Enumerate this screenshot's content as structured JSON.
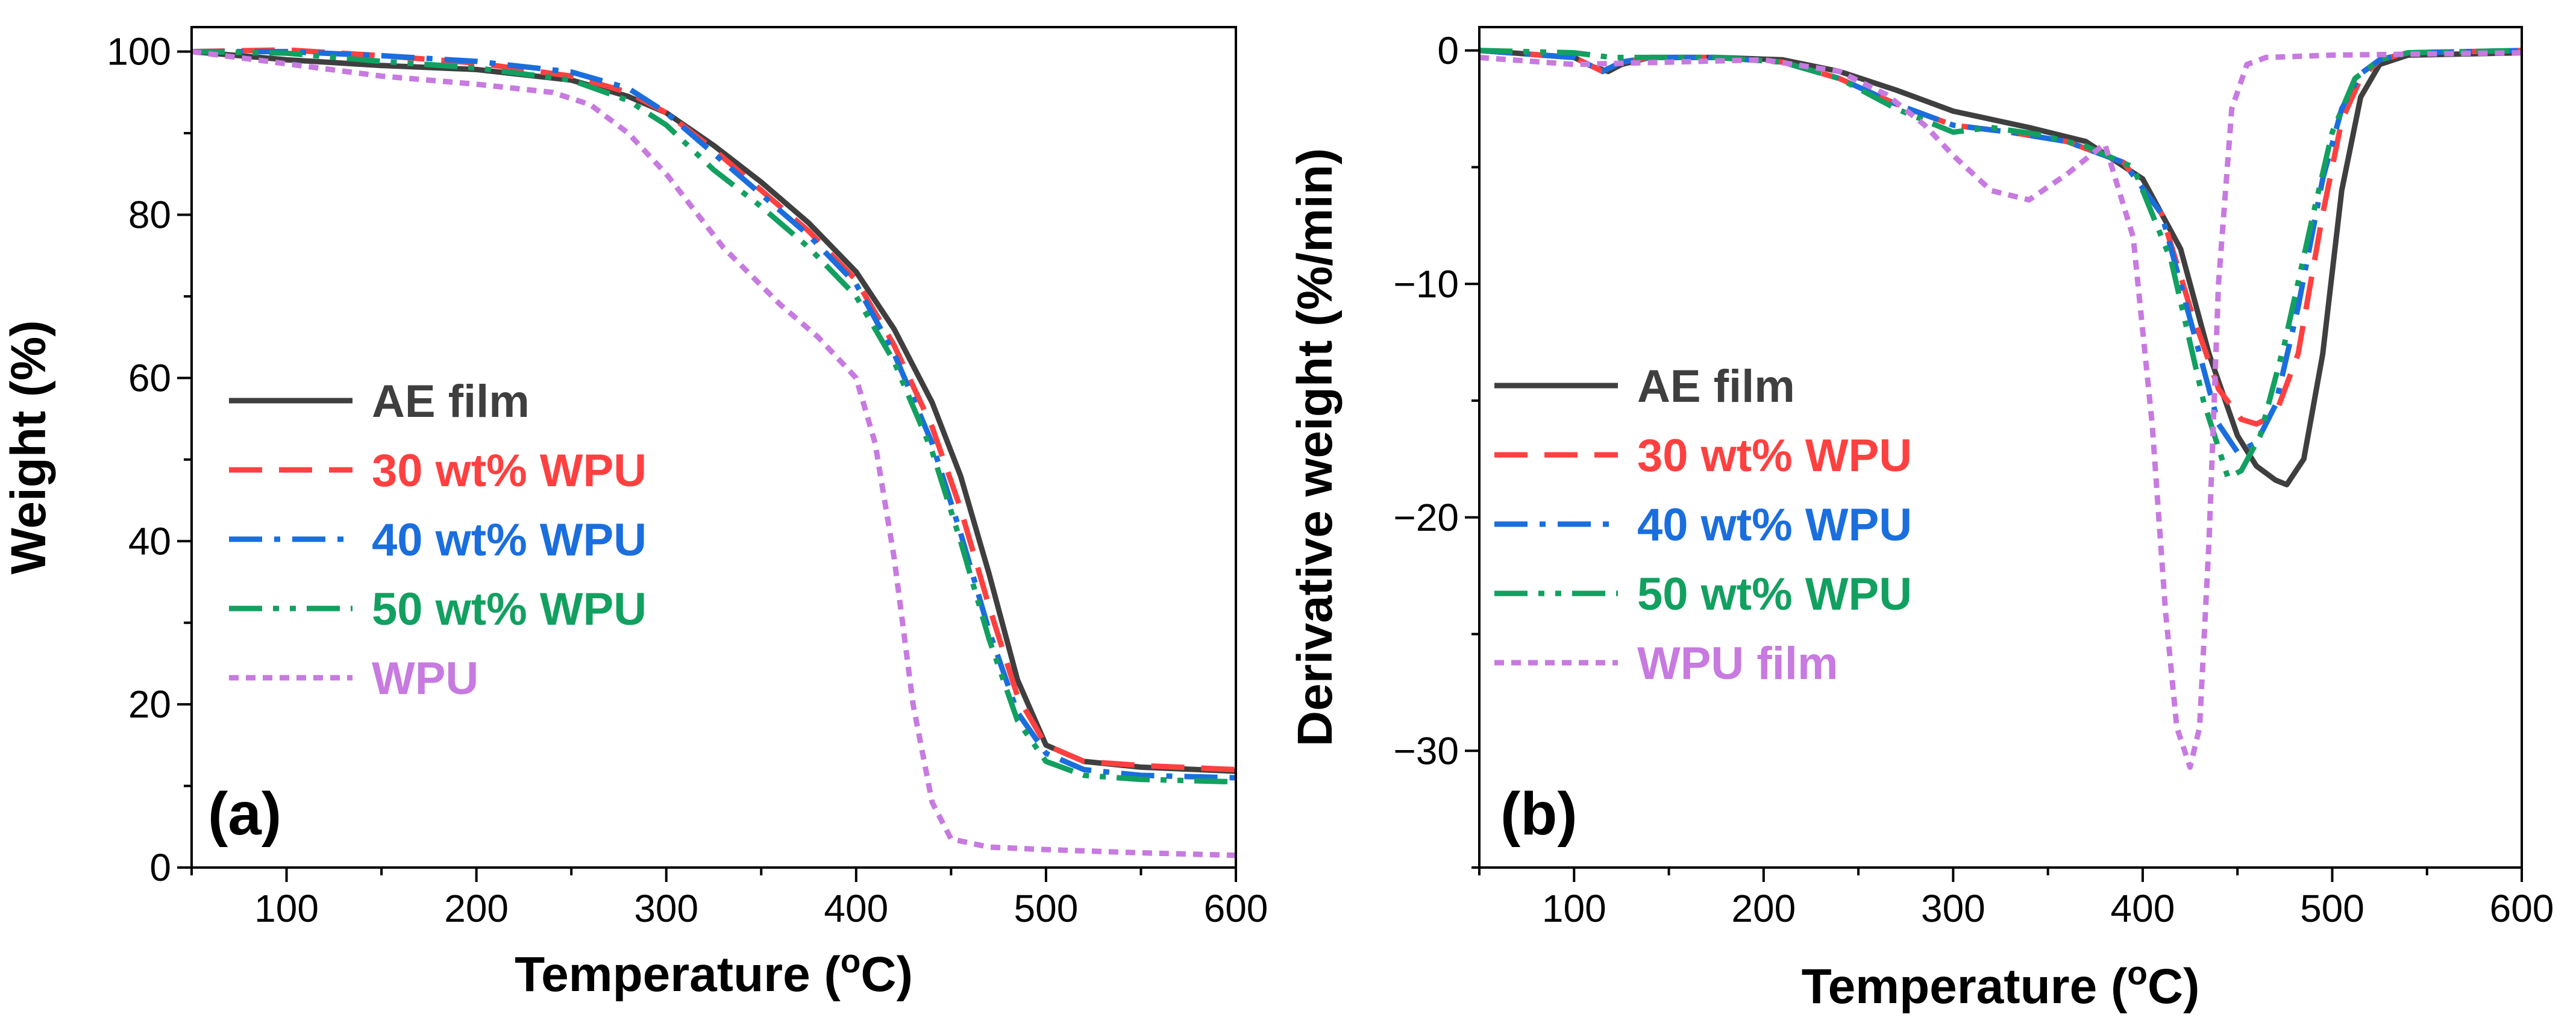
{
  "chart_data": [
    {
      "type": "line",
      "panel_label": "(a)",
      "xlabel_main": "Temperature (",
      "xlabel_sup": "o",
      "xlabel_end": "C)",
      "ylabel": "Weight (%)",
      "xlim": [
        50,
        600
      ],
      "ylim": [
        0,
        103
      ],
      "xticks": [
        100,
        200,
        300,
        400,
        500,
        600
      ],
      "xtick_labels": [
        "100",
        "200",
        "300",
        "400",
        "500",
        "600"
      ],
      "yticks": [
        0,
        20,
        40,
        60,
        80,
        100
      ],
      "ytick_labels": [
        "0",
        "20",
        "40",
        "60",
        "80",
        "100"
      ],
      "legend_position": "center-left",
      "series": [
        {
          "name": "AE film",
          "color": "#3f3f3f",
          "dash": "solid",
          "x": [
            50,
            100,
            150,
            200,
            250,
            280,
            300,
            325,
            350,
            375,
            400,
            420,
            440,
            455,
            470,
            485,
            500,
            520,
            550,
            600
          ],
          "y": [
            100,
            99,
            98.3,
            97.8,
            96.5,
            94.5,
            92.5,
            88.5,
            84,
            79,
            73,
            66,
            57,
            48,
            36,
            23,
            15,
            13,
            12.3,
            11.8
          ]
        },
        {
          "name": "30 wt% WPU",
          "color": "#ff4040",
          "dash": "dashed",
          "x": [
            50,
            100,
            150,
            200,
            250,
            280,
            300,
            325,
            350,
            375,
            400,
            420,
            440,
            455,
            470,
            485,
            500,
            520,
            550,
            600
          ],
          "y": [
            100,
            100.2,
            99.5,
            98.6,
            97,
            95,
            92.5,
            88,
            83,
            78,
            72,
            64,
            54,
            44,
            32,
            21,
            15,
            13,
            12.5,
            12
          ]
        },
        {
          "name": "40 wt% WPU",
          "color": "#1a6ede",
          "dash": "dashdot",
          "x": [
            50,
            100,
            150,
            200,
            250,
            280,
            300,
            325,
            350,
            375,
            400,
            420,
            440,
            455,
            470,
            485,
            500,
            520,
            550,
            600
          ],
          "y": [
            100,
            100,
            99.5,
            98.8,
            97.5,
            95.5,
            92.5,
            87.5,
            82.5,
            77.5,
            71.5,
            63,
            52,
            41,
            29,
            19,
            14,
            12,
            11.3,
            11
          ]
        },
        {
          "name": "50 wt% WPU",
          "color": "#12a060",
          "dash": "dashdotdot",
          "x": [
            50,
            100,
            150,
            200,
            250,
            280,
            300,
            325,
            350,
            375,
            400,
            420,
            440,
            455,
            470,
            485,
            500,
            520,
            550,
            600
          ],
          "y": [
            100,
            99.8,
            98.8,
            98,
            96.5,
            94,
            91,
            85.5,
            81,
            76,
            70,
            62,
            51,
            40,
            28,
            18,
            13,
            11.3,
            10.8,
            10.5
          ]
        },
        {
          "name": "WPU",
          "color": "#c77ae0",
          "dash": "dotted",
          "x": [
            50,
            100,
            150,
            200,
            240,
            260,
            280,
            300,
            330,
            360,
            380,
            400,
            410,
            420,
            430,
            440,
            450,
            470,
            500,
            550,
            600
          ],
          "y": [
            100,
            98.5,
            97,
            96,
            95,
            93.5,
            90,
            85,
            76,
            69,
            65,
            60,
            52,
            38,
            20,
            8,
            3.5,
            2.5,
            2.2,
            1.8,
            1.5
          ]
        }
      ]
    },
    {
      "type": "line",
      "panel_label": "(b)",
      "xlabel_main": "Temperature (",
      "xlabel_sup": "o",
      "xlabel_end": "C)",
      "ylabel": "Derivative weight (%/min)",
      "xlim": [
        50,
        600
      ],
      "ylim": [
        -35,
        1
      ],
      "xticks": [
        100,
        200,
        300,
        400,
        500,
        600
      ],
      "xtick_labels": [
        "100",
        "200",
        "300",
        "400",
        "500",
        "600"
      ],
      "yticks": [
        0,
        -10,
        -20,
        -30
      ],
      "ytick_labels": [
        "0",
        "−10",
        "−20",
        "−30"
      ],
      "legend_position": "center-left",
      "series": [
        {
          "name": "AE film",
          "color": "#3f3f3f",
          "dash": "solid",
          "x": [
            50,
            100,
            110,
            118,
            125,
            140,
            175,
            210,
            240,
            270,
            300,
            340,
            370,
            400,
            420,
            435,
            450,
            460,
            470,
            476,
            485,
            495,
            505,
            515,
            525,
            540,
            600
          ],
          "y": [
            0,
            -0.3,
            -0.7,
            -0.9,
            -0.6,
            -0.3,
            -0.3,
            -0.4,
            -0.9,
            -1.7,
            -2.6,
            -3.3,
            -3.9,
            -5.5,
            -8.5,
            -13,
            -16.5,
            -17.8,
            -18.4,
            -18.6,
            -17.5,
            -13,
            -6,
            -2,
            -0.6,
            -0.2,
            -0.1
          ]
        },
        {
          "name": "30 wt% WPU",
          "color": "#ff4040",
          "dash": "dashed",
          "x": [
            50,
            100,
            115,
            125,
            140,
            175,
            210,
            240,
            270,
            300,
            330,
            360,
            390,
            410,
            425,
            440,
            452,
            460,
            470,
            482,
            495,
            505,
            515,
            525,
            540,
            600
          ],
          "y": [
            0,
            -0.3,
            -0.9,
            -0.5,
            -0.3,
            -0.3,
            -0.5,
            -1.2,
            -2.3,
            -3.2,
            -3.5,
            -3.9,
            -4.8,
            -7,
            -11,
            -14.5,
            -15.8,
            -16,
            -15.6,
            -13,
            -7,
            -3,
            -1.2,
            -0.4,
            -0.1,
            0
          ]
        },
        {
          "name": "40 wt% WPU",
          "color": "#1a6ede",
          "dash": "dashdot",
          "x": [
            50,
            100,
            115,
            125,
            140,
            175,
            210,
            240,
            270,
            300,
            330,
            360,
            390,
            410,
            425,
            440,
            450,
            460,
            470,
            482,
            495,
            505,
            515,
            525,
            540,
            600
          ],
          "y": [
            0,
            -0.3,
            -0.9,
            -0.5,
            -0.3,
            -0.3,
            -0.5,
            -1.2,
            -2.3,
            -3.2,
            -3.5,
            -3.9,
            -4.8,
            -7,
            -11.5,
            -16,
            -17.2,
            -16.8,
            -15.2,
            -11,
            -5.5,
            -2.5,
            -1,
            -0.4,
            -0.1,
            0
          ]
        },
        {
          "name": "50 wt% WPU",
          "color": "#12a060",
          "dash": "dashdotdot",
          "x": [
            50,
            100,
            110,
            120,
            135,
            175,
            210,
            240,
            270,
            300,
            320,
            345,
            370,
            395,
            415,
            432,
            445,
            452,
            462,
            475,
            490,
            500,
            512,
            525,
            540,
            600
          ],
          "y": [
            0,
            -0.1,
            -0.2,
            -0.3,
            -0.3,
            -0.3,
            -0.5,
            -1.2,
            -2.5,
            -3.5,
            -3.3,
            -3.6,
            -4.1,
            -5,
            -9,
            -15,
            -18.3,
            -18,
            -16.5,
            -12.5,
            -7,
            -3.5,
            -1.2,
            -0.4,
            -0.1,
            0
          ]
        },
        {
          "name": "WPU film",
          "color": "#c77ae0",
          "dash": "dotted",
          "x": [
            50,
            100,
            150,
            200,
            240,
            265,
            285,
            300,
            320,
            340,
            360,
            380,
            395,
            405,
            412,
            418,
            425,
            430,
            435,
            440,
            447,
            455,
            465,
            500,
            600
          ],
          "y": [
            -0.3,
            -0.6,
            -0.5,
            -0.4,
            -0.9,
            -1.9,
            -3.2,
            -4.5,
            -6,
            -6.4,
            -5.3,
            -4,
            -8,
            -16,
            -24,
            -29,
            -30.7,
            -29,
            -21,
            -10,
            -2.5,
            -0.6,
            -0.3,
            -0.2,
            -0.1
          ]
        }
      ]
    }
  ]
}
